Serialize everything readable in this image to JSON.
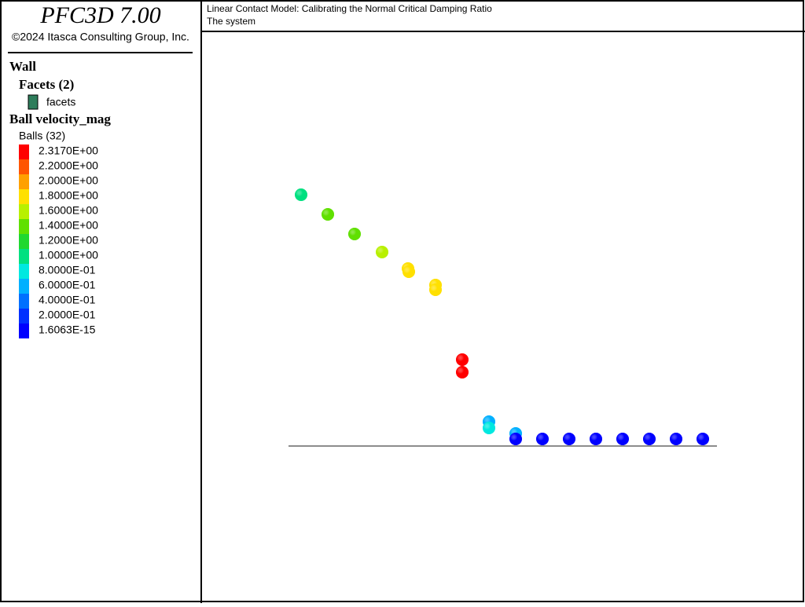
{
  "header": {
    "product": "PFC3D 7.00",
    "copyright": "©2024 Itasca Consulting Group, Inc."
  },
  "legend": {
    "wall": "Wall",
    "facets_title": "Facets (2)",
    "facets_item": {
      "label": "facets",
      "color": "#2e7d5b"
    },
    "ball_title": "Ball velocity_mag",
    "balls_title": "Balls (32)",
    "scale": [
      {
        "label": "2.3170E+00",
        "color": "#ff0000"
      },
      {
        "label": "2.2000E+00",
        "color": "#ff5500"
      },
      {
        "label": "2.0000E+00",
        "color": "#ffa000"
      },
      {
        "label": "1.8000E+00",
        "color": "#ffe000"
      },
      {
        "label": "1.6000E+00",
        "color": "#b8f000"
      },
      {
        "label": "1.4000E+00",
        "color": "#60e000"
      },
      {
        "label": "1.2000E+00",
        "color": "#20d830"
      },
      {
        "label": "1.0000E+00",
        "color": "#00e080"
      },
      {
        "label": "8.0000E-01",
        "color": "#00e8e0"
      },
      {
        "label": "6.0000E-01",
        "color": "#00b0ff"
      },
      {
        "label": "4.0000E-01",
        "color": "#0070ff"
      },
      {
        "label": "2.0000E-01",
        "color": "#0030ff"
      },
      {
        "label": "1.6063E-15",
        "color": "#0000ff"
      }
    ]
  },
  "plot": {
    "title": "Linear Contact Model: Calibrating the Normal Critical Damping Ratio",
    "subtitle": "The system"
  }
}
